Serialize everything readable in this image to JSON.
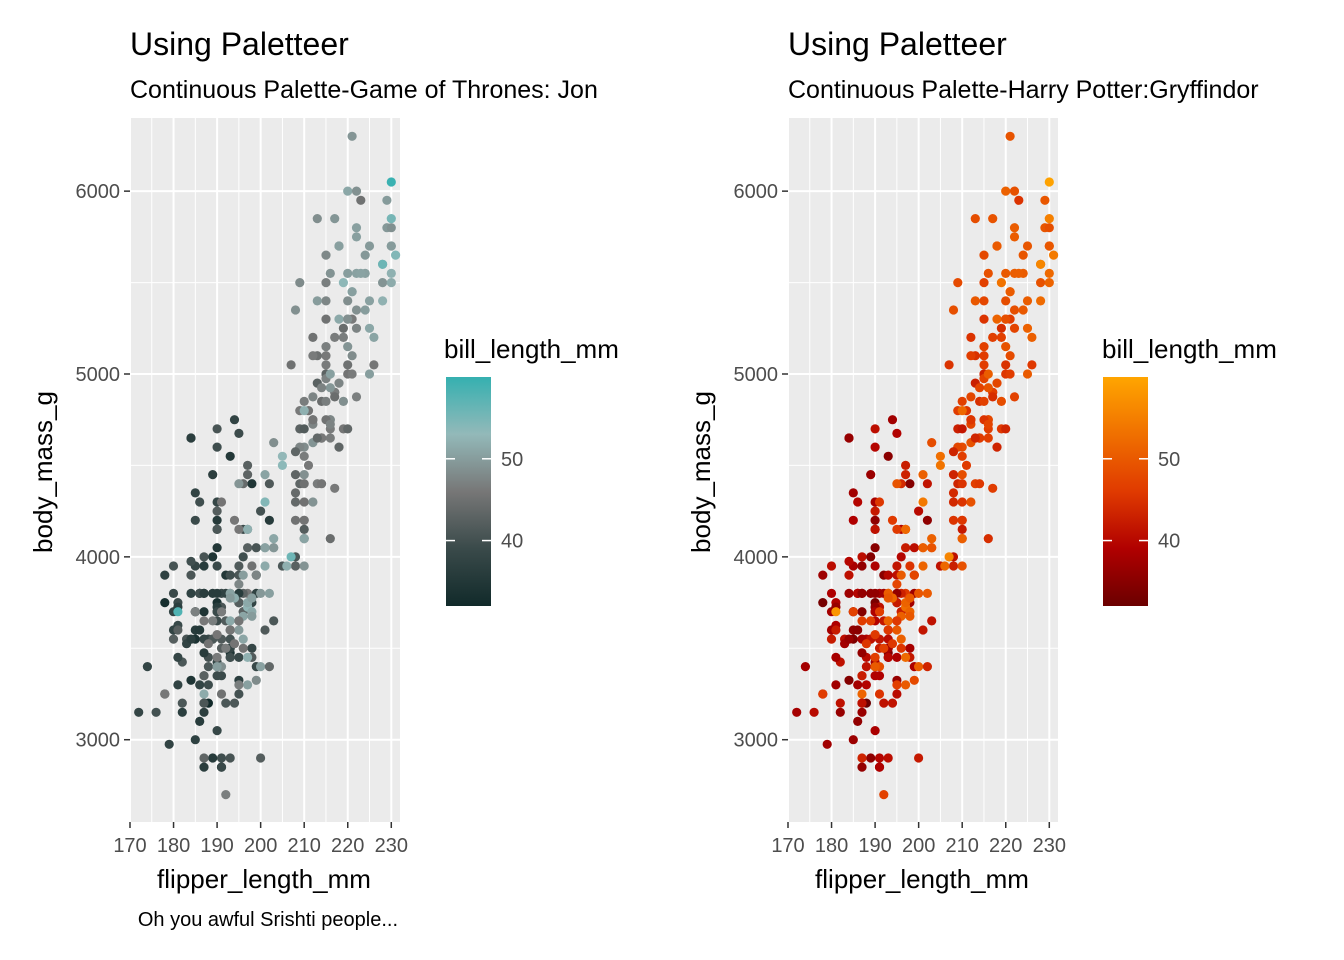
{
  "caption": "Oh you awful Srishti people...",
  "chart_data": [
    {
      "type": "scatter",
      "title": "Using Paletteer",
      "subtitle": "Continuous Palette-Game of Thrones: Jon",
      "xlabel": "flipper_length_mm",
      "ylabel": "body_mass_g",
      "xlim": [
        170,
        232
      ],
      "ylim": [
        2550,
        6400
      ],
      "xticks": [
        "170",
        "180",
        "190",
        "200",
        "210",
        "220",
        "230"
      ],
      "yticks": [
        "3000",
        "4000",
        "5000",
        "6000"
      ],
      "grid": true,
      "legend": {
        "title": "bill_length_mm",
        "position": "right",
        "labels": [
          "40",
          "50"
        ],
        "range": [
          32,
          60
        ],
        "colors": [
          "#112a2a",
          "#3a4a4a",
          "#777777",
          "#93b9b9",
          "#35b0b0"
        ]
      },
      "colormap": "Game of Thrones: Jon"
    },
    {
      "type": "scatter",
      "title": "Using Paletteer",
      "subtitle": "Continuous Palette-Harry Potter:Gryffindor",
      "xlabel": "flipper_length_mm",
      "ylabel": "body_mass_g",
      "xlim": [
        170,
        232
      ],
      "ylim": [
        2550,
        6400
      ],
      "xticks": [
        "170",
        "180",
        "190",
        "200",
        "210",
        "220",
        "230"
      ],
      "yticks": [
        "3000",
        "4000",
        "5000",
        "6000"
      ],
      "grid": true,
      "legend": {
        "title": "bill_length_mm",
        "position": "right",
        "labels": [
          "40",
          "50"
        ],
        "range": [
          32,
          60
        ],
        "colors": [
          "#6b0000",
          "#b00000",
          "#e03a00",
          "#f07000",
          "#ffa500"
        ]
      },
      "colormap": "Harry Potter: Gryffindor"
    }
  ],
  "points": [
    [
      181,
      3750,
      39.1
    ],
    [
      186,
      3800,
      39.5
    ],
    [
      195,
      3250,
      40.3
    ],
    [
      193,
      3450,
      36.7
    ],
    [
      190,
      3650,
      39.3
    ],
    [
      181,
      3625,
      38.9
    ],
    [
      195,
      4675,
      39.2
    ],
    [
      193,
      3475,
      34.1
    ],
    [
      190,
      4250,
      42
    ],
    [
      186,
      3300,
      37.8
    ],
    [
      180,
      3700,
      37.8
    ],
    [
      182,
      3200,
      41.1
    ],
    [
      191,
      3800,
      38.6
    ],
    [
      198,
      4400,
      34.6
    ],
    [
      185,
      3700,
      36.6
    ],
    [
      195,
      3450,
      38.7
    ],
    [
      197,
      4500,
      42.5
    ],
    [
      184,
      3325,
      34.4
    ],
    [
      194,
      4200,
      46
    ],
    [
      174,
      3400,
      37.8
    ],
    [
      180,
      3600,
      37.7
    ],
    [
      189,
      3800,
      35.9
    ],
    [
      185,
      3950,
      38.2
    ],
    [
      180,
      3800,
      38.8
    ],
    [
      187,
      3800,
      35.3
    ],
    [
      183,
      3550,
      40.6
    ],
    [
      187,
      3200,
      40.5
    ],
    [
      172,
      3150,
      37.9
    ],
    [
      180,
      3950,
      40.5
    ],
    [
      178,
      3250,
      39.5
    ],
    [
      178,
      3900,
      37.2
    ],
    [
      188,
      3300,
      39.5
    ],
    [
      184,
      3900,
      40.9
    ],
    [
      195,
      3325,
      36.4
    ],
    [
      196,
      4150,
      39.2
    ],
    [
      190,
      3950,
      38.8
    ],
    [
      180,
      3550,
      42.2
    ],
    [
      181,
      3300,
      37.6
    ],
    [
      184,
      4650,
      39.8
    ],
    [
      182,
      3150,
      36.5
    ],
    [
      195,
      3900,
      40.8
    ],
    [
      186,
      3100,
      36
    ],
    [
      196,
      4400,
      44.1
    ],
    [
      185,
      3000,
      37
    ],
    [
      190,
      4600,
      39.6
    ],
    [
      182,
      3425,
      41.1
    ],
    [
      179,
      2975,
      37.5
    ],
    [
      190,
      4150,
      36
    ],
    [
      191,
      3500,
      42.3
    ],
    [
      186,
      4300,
      39.6
    ],
    [
      188,
      3450,
      40.1
    ],
    [
      190,
      4050,
      35
    ],
    [
      200,
      2900,
      42
    ],
    [
      187,
      3700,
      34.5
    ],
    [
      191,
      3550,
      41.4
    ],
    [
      186,
      3800,
      39
    ],
    [
      193,
      2900,
      40.6
    ],
    [
      181,
      3725,
      36.5
    ],
    [
      194,
      4750,
      37.6
    ],
    [
      185,
      3600,
      35.7
    ],
    [
      195,
      3650,
      41.3
    ],
    [
      185,
      4350,
      37.6
    ],
    [
      192,
      3200,
      41.1
    ],
    [
      184,
      4650,
      36.4
    ],
    [
      192,
      3650,
      41.6
    ],
    [
      195,
      3750,
      35.5
    ],
    [
      188,
      3400,
      41.1
    ],
    [
      190,
      3800,
      35.9
    ],
    [
      198,
      3450,
      41.8
    ],
    [
      190,
      3750,
      33.5
    ],
    [
      190,
      3700,
      39.7
    ],
    [
      196,
      4000,
      39.6
    ],
    [
      197,
      3800,
      45.8
    ],
    [
      190,
      4200,
      35.5
    ],
    [
      195,
      3750,
      42.8
    ],
    [
      191,
      3725,
      40.9
    ],
    [
      184,
      3800,
      37.2
    ],
    [
      187,
      3475,
      36.2
    ],
    [
      195,
      3750,
      42.1
    ],
    [
      189,
      4000,
      34.6
    ],
    [
      196,
      3800,
      42.9
    ],
    [
      187,
      3150,
      36.7
    ],
    [
      193,
      4550,
      35.1
    ],
    [
      191,
      2850,
      37.3
    ],
    [
      194,
      3200,
      41.3
    ],
    [
      190,
      3725,
      36.3
    ],
    [
      189,
      4450,
      36.9
    ],
    [
      189,
      3550,
      38.3
    ],
    [
      190,
      3700,
      38.9
    ],
    [
      202,
      4200,
      35.7
    ],
    [
      205,
      3950,
      41.1
    ],
    [
      185,
      3550,
      34
    ],
    [
      186,
      3800,
      39.6
    ],
    [
      187,
      3800,
      36.2
    ],
    [
      208,
      4000,
      40.8
    ],
    [
      190,
      3400,
      38.1
    ],
    [
      196,
      3700,
      40.3
    ],
    [
      178,
      3750,
      33.1
    ],
    [
      192,
      3500,
      43.2
    ],
    [
      192,
      3900,
      35
    ],
    [
      203,
      3650,
      41
    ],
    [
      183,
      3525,
      37.7
    ],
    [
      190,
      3425,
      37.8
    ],
    [
      193,
      3500,
      37.9
    ],
    [
      184,
      3975,
      39.7
    ],
    [
      199,
      3400,
      38.6
    ],
    [
      190,
      4300,
      38.2
    ],
    [
      181,
      3450,
      38.1
    ],
    [
      197,
      4150,
      43.2
    ],
    [
      198,
      3500,
      38.1
    ],
    [
      191,
      4300,
      45.6
    ],
    [
      193,
      3450,
      39.7
    ],
    [
      197,
      4050,
      42.2
    ],
    [
      191,
      2900,
      39.6
    ],
    [
      196,
      3700,
      42.7
    ],
    [
      188,
      3550,
      38.6
    ],
    [
      199,
      3800,
      37.3
    ],
    [
      189,
      2900,
      35.7
    ],
    [
      189,
      3550,
      41.1
    ],
    [
      187,
      2850,
      36.2
    ],
    [
      198,
      3750,
      37.7
    ],
    [
      176,
      3150,
      40.2
    ],
    [
      202,
      4400,
      41.4
    ],
    [
      186,
      3600,
      35.2
    ],
    [
      199,
      4050,
      40.6
    ],
    [
      191,
      2850,
      38.8
    ],
    [
      195,
      3950,
      41.5
    ],
    [
      191,
      3350,
      39
    ],
    [
      210,
      4100,
      44.1
    ],
    [
      190,
      3050,
      38.5
    ],
    [
      197,
      4450,
      43.1
    ],
    [
      193,
      3600,
      36.8
    ],
    [
      199,
      3900,
      37.5
    ],
    [
      187,
      3550,
      38.1
    ],
    [
      190,
      4150,
      41.1
    ],
    [
      191,
      3700,
      35.6
    ],
    [
      200,
      4250,
      40.2
    ],
    [
      185,
      3700,
      37
    ],
    [
      193,
      3900,
      39.7
    ],
    [
      193,
      3550,
      40.2
    ],
    [
      187,
      4000,
      40.6
    ],
    [
      188,
      3200,
      32.1
    ],
    [
      190,
      4700,
      40.7
    ],
    [
      192,
      3800,
      37.3
    ],
    [
      185,
      4200,
      39
    ],
    [
      190,
      3350,
      39.2
    ],
    [
      184,
      3550,
      36.6
    ],
    [
      195,
      3800,
      36
    ],
    [
      193,
      3500,
      37.8
    ],
    [
      187,
      3950,
      36
    ],
    [
      201,
      3600,
      41.5
    ],
    [
      211,
      4500,
      46.1
    ],
    [
      230,
      5700,
      50
    ],
    [
      210,
      4450,
      48.7
    ],
    [
      218,
      5700,
      50
    ],
    [
      215,
      5400,
      47.6
    ],
    [
      210,
      4550,
      46.5
    ],
    [
      211,
      4800,
      45.4
    ],
    [
      219,
      5200,
      46.7
    ],
    [
      209,
      4400,
      43.3
    ],
    [
      215,
      5150,
      46.8
    ],
    [
      214,
      4650,
      40.9
    ],
    [
      216,
      5550,
      49
    ],
    [
      214,
      4650,
      45.5
    ],
    [
      213,
      5850,
      48.4
    ],
    [
      210,
      4200,
      45.8
    ],
    [
      217,
      5850,
      49.3
    ],
    [
      210,
      4150,
      42
    ],
    [
      221,
      6300,
      49.2
    ],
    [
      209,
      4800,
      46.2
    ],
    [
      222,
      5350,
      48.7
    ],
    [
      218,
      5700,
      50.2
    ],
    [
      215,
      5000,
      45.1
    ],
    [
      213,
      4400,
      46.5
    ],
    [
      215,
      5050,
      46.3
    ],
    [
      215,
      5000,
      42.9
    ],
    [
      215,
      5100,
      46.1
    ],
    [
      216,
      4100,
      44.5
    ],
    [
      215,
      5650,
      47.8
    ],
    [
      210,
      4600,
      48.2
    ],
    [
      220,
      5550,
      50
    ],
    [
      222,
      5250,
      47.3
    ],
    [
      209,
      4700,
      42.8
    ],
    [
      207,
      5050,
      45.1
    ],
    [
      230,
      6050,
      59.6
    ],
    [
      220,
      5150,
      49.1
    ],
    [
      220,
      5400,
      48.4
    ],
    [
      213,
      4950,
      42.6
    ],
    [
      219,
      5250,
      44.4
    ],
    [
      208,
      4350,
      44
    ],
    [
      208,
      5350,
      48.7
    ],
    [
      208,
      3950,
      42.7
    ],
    [
      225,
      5700,
      49.6
    ],
    [
      210,
      4300,
      45.3
    ],
    [
      216,
      4750,
      49.6
    ],
    [
      222,
      5550,
      50.5
    ],
    [
      217,
      4900,
      43.6
    ],
    [
      210,
      4200,
      45.5
    ],
    [
      225,
      5400,
      50.5
    ],
    [
      213,
      5100,
      44.9
    ],
    [
      215,
      5300,
      45.2
    ],
    [
      210,
      4850,
      46.6
    ],
    [
      220,
      5300,
      48.5
    ],
    [
      210,
      4400,
      45.1
    ],
    [
      225,
      5000,
      50.1
    ],
    [
      217,
      4900,
      46.5
    ],
    [
      220,
      5050,
      45
    ],
    [
      208,
      4300,
      43.8
    ],
    [
      220,
      5000,
      45.5
    ],
    [
      208,
      4450,
      43.2
    ],
    [
      224,
      5550,
      50.4
    ],
    [
      208,
      4200,
      45.3
    ],
    [
      221,
      5300,
      46.2
    ],
    [
      214,
      4400,
      45.7
    ],
    [
      231,
      5650,
      54.3
    ],
    [
      219,
      4700,
      45.8
    ],
    [
      230,
      5700,
      49.8
    ],
    [
      214,
      4650,
      46.2
    ],
    [
      229,
      5800,
      49.5
    ],
    [
      220,
      4700,
      43.5
    ],
    [
      223,
      5550,
      50.7
    ],
    [
      216,
      4750,
      47.7
    ],
    [
      221,
      5000,
      46.4
    ],
    [
      221,
      5100,
      48.2
    ],
    [
      217,
      5200,
      46.5
    ],
    [
      216,
      4700,
      46.4
    ],
    [
      230,
      5800,
      48.6
    ],
    [
      209,
      4600,
      47.5
    ],
    [
      220,
      6000,
      51.1
    ],
    [
      215,
      4750,
      45.2
    ],
    [
      223,
      5950,
      45.2
    ],
    [
      212,
      4625,
      49.1
    ],
    [
      221,
      5450,
      52.5
    ],
    [
      212,
      4725,
      47.4
    ],
    [
      224,
      5350,
      50
    ],
    [
      212,
      4750,
      44.9
    ],
    [
      228,
      5600,
      50.8
    ],
    [
      218,
      4600,
      43.4
    ],
    [
      218,
      5300,
      51.3
    ],
    [
      212,
      4875,
      47.5
    ],
    [
      230,
      5550,
      52.1
    ],
    [
      218,
      4950,
      47.5
    ],
    [
      228,
      5400,
      52.2
    ],
    [
      212,
      4750,
      45.5
    ],
    [
      224,
      5650,
      49.5
    ],
    [
      214,
      4850,
      44.5
    ],
    [
      226,
      5200,
      50.8
    ],
    [
      216,
      4925,
      49.4
    ],
    [
      222,
      4875,
      46.9
    ],
    [
      203,
      4625,
      48.4
    ],
    [
      225,
      5250,
      51.1
    ],
    [
      219,
      4850,
      48.5
    ],
    [
      228,
      5600,
      55.9
    ],
    [
      215,
      4975,
      47.2
    ],
    [
      228,
      5500,
      49.1
    ],
    [
      216,
      4725,
      47.3
    ],
    [
      215,
      5500,
      46.8
    ],
    [
      210,
      4700,
      41.7
    ],
    [
      219,
      5500,
      53.4
    ],
    [
      208,
      4575,
      43.3
    ],
    [
      209,
      5500,
      48.1
    ],
    [
      216,
      5000,
      50.5
    ],
    [
      229,
      5950,
      49.8
    ],
    [
      213,
      4650,
      43.5
    ],
    [
      230,
      5500,
      51.5
    ],
    [
      217,
      4375,
      46.2
    ],
    [
      230,
      5850,
      55.1
    ],
    [
      217,
      4875,
      44.5
    ],
    [
      222,
      6000,
      48.8
    ],
    [
      214,
      4925,
      47.2
    ],
    [
      215,
      4850,
      46.8
    ],
    [
      222,
      5750,
      50.4
    ],
    [
      212,
      5200,
      45.2
    ],
    [
      213,
      5400,
      49.9
    ],
    [
      212,
      5100,
      46.4
    ],
    [
      222,
      5800,
      50.4
    ],
    [
      226,
      5050,
      45.8
    ],
    [
      220,
      5300,
      48.7
    ],
    [
      221,
      5450,
      50.3
    ],
    [
      216,
      4650,
      46.5
    ],
    [
      192,
      3500,
      46.5
    ],
    [
      196,
      3900,
      50
    ],
    [
      193,
      3650,
      51.3
    ],
    [
      188,
      3525,
      45.4
    ],
    [
      197,
      3725,
      52.7
    ],
    [
      198,
      3950,
      45.2
    ],
    [
      178,
      3250,
      46.1
    ],
    [
      197,
      3750,
      51.3
    ],
    [
      195,
      4150,
      46
    ],
    [
      198,
      3700,
      51.3
    ],
    [
      193,
      3800,
      46.6
    ],
    [
      194,
      3775,
      51.7
    ],
    [
      185,
      3700,
      47
    ],
    [
      201,
      4050,
      52
    ],
    [
      190,
      3575,
      45.9
    ],
    [
      201,
      4050,
      50.5
    ],
    [
      197,
      3300,
      50.3
    ],
    [
      181,
      3700,
      58
    ],
    [
      190,
      3450,
      46.4
    ],
    [
      195,
      4400,
      49.2
    ],
    [
      181,
      3600,
      42.4
    ],
    [
      191,
      3400,
      48.5
    ],
    [
      187,
      2900,
      43.2
    ],
    [
      193,
      3800,
      50.6
    ],
    [
      195,
      3300,
      46.7
    ],
    [
      197,
      4150,
      52
    ],
    [
      200,
      3400,
      50.5
    ],
    [
      200,
      3800,
      49.5
    ],
    [
      191,
      3700,
      46.4
    ],
    [
      205,
      4550,
      52.8
    ],
    [
      187,
      3200,
      40.9
    ],
    [
      201,
      4300,
      54.2
    ],
    [
      187,
      3350,
      42.5
    ],
    [
      203,
      4100,
      51
    ],
    [
      195,
      3600,
      49.7
    ],
    [
      199,
      3900,
      47.5
    ],
    [
      195,
      3850,
      47.6
    ],
    [
      210,
      4800,
      52
    ],
    [
      192,
      2700,
      46.9
    ],
    [
      205,
      4500,
      53.5
    ],
    [
      210,
      3950,
      49
    ],
    [
      187,
      3650,
      46.2
    ],
    [
      196,
      3550,
      50.9
    ],
    [
      196,
      3500,
      45.5
    ],
    [
      196,
      3675,
      50.9
    ],
    [
      201,
      4450,
      50.8
    ],
    [
      190,
      3400,
      50.1
    ],
    [
      212,
      4300,
      49
    ],
    [
      187,
      3250,
      51.5
    ],
    [
      198,
      3675,
      49.8
    ],
    [
      199,
      3325,
      48.1
    ],
    [
      201,
      3950,
      51.4
    ],
    [
      193,
      3600,
      45.7
    ],
    [
      203,
      4050,
      50.7
    ],
    [
      187,
      3350,
      42.5
    ],
    [
      197,
      3450,
      52.2
    ],
    [
      191,
      3250,
      45.2
    ],
    [
      203,
      4050,
      49.3
    ],
    [
      202,
      3800,
      50.2
    ],
    [
      194,
      3525,
      45.6
    ],
    [
      206,
      3950,
      51.9
    ],
    [
      189,
      3650,
      46.8
    ],
    [
      195,
      3650,
      45.7
    ],
    [
      207,
      4000,
      55.8
    ],
    [
      202,
      3400,
      43.5
    ],
    [
      193,
      3775,
      49.6
    ],
    [
      210,
      4100,
      50.8
    ],
    [
      198,
      3775,
      50.2
    ]
  ]
}
